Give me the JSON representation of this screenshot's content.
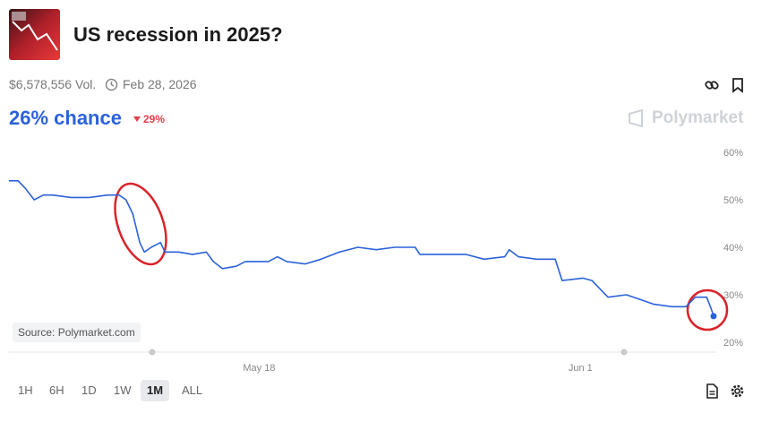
{
  "header": {
    "title": "US recession in 2025?",
    "volume": "$6,578,556 Vol.",
    "end_date": "Feb 28, 2026",
    "chance": "26% chance",
    "change": "29%",
    "brand": "Polymarket"
  },
  "chart_data": {
    "type": "line",
    "color": "#2b62d9",
    "grid": false,
    "x": [
      7.1,
      7.5,
      7.8,
      8.2,
      8.6,
      9.0,
      9.8,
      10.6,
      11.4,
      11.9,
      12.2,
      12.5,
      12.8,
      13.0,
      13.3,
      13.7,
      13.9,
      14.5,
      15.1,
      15.7,
      16.0,
      16.4,
      17.0,
      17.4,
      18.4,
      18.8,
      19.2,
      20.0,
      20.7,
      21.5,
      22.3,
      23.1,
      23.9,
      24.8,
      25.0,
      26.2,
      27.0,
      27.8,
      28.7,
      28.9,
      29.3,
      30.1,
      30.9,
      31.2,
      32.1,
      32.5,
      33.2,
      34.0,
      34.6,
      35.2,
      36.0,
      36.6,
      37.0,
      37.5,
      37.7,
      37.8
    ],
    "values": [
      54,
      54,
      52.5,
      50,
      51,
      51,
      50.5,
      50.5,
      51,
      51,
      50,
      47,
      41,
      39,
      40,
      41,
      39,
      39,
      38.5,
      39,
      37,
      35.5,
      36,
      37,
      37,
      38,
      37,
      36.5,
      37.5,
      39,
      40,
      39.5,
      40,
      40,
      38.5,
      38.5,
      38.5,
      37.5,
      38,
      39.5,
      38,
      37.5,
      37.5,
      33,
      33.5,
      33,
      29.5,
      30,
      29,
      28,
      27.5,
      27.5,
      29.5,
      29.5,
      27,
      25.5
    ],
    "xlim": [
      7.1,
      37.8
    ],
    "xticks": [
      {
        "value": 18,
        "label": "May 18"
      },
      {
        "value": 32,
        "label": "Jun 1"
      }
    ],
    "ylim": [
      20,
      60
    ],
    "yticks": [
      {
        "value": 60,
        "label": "60%"
      },
      {
        "value": 50,
        "label": "50%"
      },
      {
        "value": 40,
        "label": "40%"
      },
      {
        "value": 30,
        "label": "30%"
      },
      {
        "value": 20,
        "label": "20%"
      }
    ],
    "source": "Source: Polymarket.com"
  },
  "ranges": [
    "1H",
    "6H",
    "1D",
    "1W",
    "1M",
    "ALL"
  ],
  "selected_range": 4
}
